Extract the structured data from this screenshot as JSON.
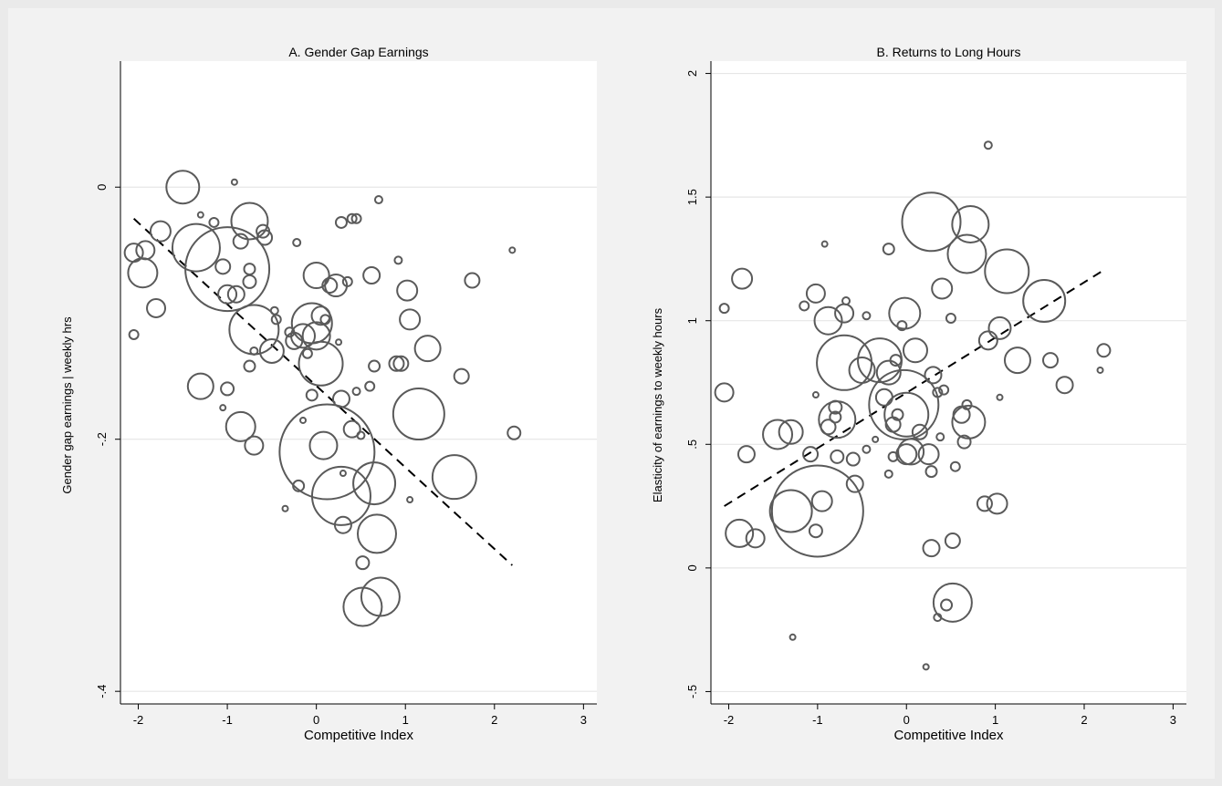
{
  "chart_data": [
    {
      "type": "scatter",
      "title": "A. Gender Gap Earnings",
      "xlabel": "Competitive Index",
      "ylabel": "Gender gap earnings | weekly hrs",
      "xlim": [
        -2.2,
        3.15
      ],
      "ylim": [
        -0.41,
        0.1
      ],
      "xticks": [
        -2,
        -1,
        0,
        1,
        2,
        3
      ],
      "yticks": [
        0,
        -0.2,
        -0.4
      ],
      "ytick_labels": [
        "0",
        "-.2",
        "-.4"
      ],
      "grid": true,
      "marker": "hollow circles sized by weight",
      "fit_line": {
        "style": "dashed",
        "x": [
          -2.05,
          2.2
        ],
        "y": [
          -0.025,
          -0.3
        ]
      },
      "points": [
        {
          "x": -2.05,
          "y": -0.052,
          "r": 10
        },
        {
          "x": -1.92,
          "y": -0.05,
          "r": 10
        },
        {
          "x": -1.75,
          "y": -0.035,
          "r": 11
        },
        {
          "x": -1.95,
          "y": -0.068,
          "r": 16
        },
        {
          "x": -1.8,
          "y": -0.096,
          "r": 10
        },
        {
          "x": -1.5,
          "y": 0.0,
          "r": 18
        },
        {
          "x": -1.35,
          "y": -0.048,
          "r": 26
        },
        {
          "x": -1.0,
          "y": -0.065,
          "r": 46
        },
        {
          "x": -1.3,
          "y": -0.022,
          "r": 3
        },
        {
          "x": -1.15,
          "y": -0.028,
          "r": 5
        },
        {
          "x": -1.05,
          "y": -0.063,
          "r": 8
        },
        {
          "x": -1.0,
          "y": -0.085,
          "r": 10
        },
        {
          "x": -0.9,
          "y": -0.085,
          "r": 9
        },
        {
          "x": -0.85,
          "y": -0.043,
          "r": 8
        },
        {
          "x": -0.75,
          "y": -0.065,
          "r": 6
        },
        {
          "x": -0.75,
          "y": -0.075,
          "r": 7
        },
        {
          "x": -0.75,
          "y": -0.027,
          "r": 20
        },
        {
          "x": -0.6,
          "y": -0.035,
          "r": 7
        },
        {
          "x": -0.58,
          "y": -0.04,
          "r": 8
        },
        {
          "x": -0.92,
          "y": 0.004,
          "r": 3
        },
        {
          "x": -2.05,
          "y": -0.117,
          "r": 5
        },
        {
          "x": -0.7,
          "y": -0.113,
          "r": 27
        },
        {
          "x": -0.7,
          "y": -0.13,
          "r": 4
        },
        {
          "x": -0.75,
          "y": -0.142,
          "r": 6
        },
        {
          "x": -0.5,
          "y": -0.13,
          "r": 13
        },
        {
          "x": -0.47,
          "y": -0.098,
          "r": 4
        },
        {
          "x": -0.45,
          "y": -0.105,
          "r": 5
        },
        {
          "x": -0.3,
          "y": -0.115,
          "r": 5
        },
        {
          "x": -0.25,
          "y": -0.122,
          "r": 9
        },
        {
          "x": -0.15,
          "y": -0.118,
          "r": 13
        },
        {
          "x": -0.05,
          "y": -0.108,
          "r": 22
        },
        {
          "x": 0.0,
          "y": -0.118,
          "r": 15
        },
        {
          "x": 0.05,
          "y": -0.102,
          "r": 10
        },
        {
          "x": -0.1,
          "y": -0.132,
          "r": 5
        },
        {
          "x": 0.05,
          "y": -0.14,
          "r": 24
        },
        {
          "x": 0.1,
          "y": -0.105,
          "r": 5
        },
        {
          "x": 0.0,
          "y": -0.07,
          "r": 14
        },
        {
          "x": 0.15,
          "y": -0.078,
          "r": 8
        },
        {
          "x": 0.22,
          "y": -0.078,
          "r": 12
        },
        {
          "x": 0.35,
          "y": -0.075,
          "r": 5
        },
        {
          "x": 0.25,
          "y": -0.123,
          "r": 3
        },
        {
          "x": -0.22,
          "y": -0.044,
          "r": 4
        },
        {
          "x": 0.28,
          "y": -0.028,
          "r": 6
        },
        {
          "x": 0.4,
          "y": -0.025,
          "r": 5
        },
        {
          "x": 0.45,
          "y": -0.025,
          "r": 5
        },
        {
          "x": 0.7,
          "y": -0.01,
          "r": 4
        },
        {
          "x": 0.62,
          "y": -0.07,
          "r": 9
        },
        {
          "x": 0.92,
          "y": -0.058,
          "r": 4
        },
        {
          "x": 1.02,
          "y": -0.082,
          "r": 11
        },
        {
          "x": 1.05,
          "y": -0.105,
          "r": 11
        },
        {
          "x": 1.75,
          "y": -0.074,
          "r": 8
        },
        {
          "x": 2.2,
          "y": -0.05,
          "r": 3
        },
        {
          "x": 1.25,
          "y": -0.128,
          "r": 14
        },
        {
          "x": 0.9,
          "y": -0.14,
          "r": 8
        },
        {
          "x": 0.95,
          "y": -0.14,
          "r": 8
        },
        {
          "x": 0.65,
          "y": -0.142,
          "r": 6
        },
        {
          "x": 1.63,
          "y": -0.15,
          "r": 8
        },
        {
          "x": -1.3,
          "y": -0.158,
          "r": 14
        },
        {
          "x": -1.0,
          "y": -0.16,
          "r": 7
        },
        {
          "x": -0.85,
          "y": -0.19,
          "r": 16
        },
        {
          "x": -0.7,
          "y": -0.205,
          "r": 10
        },
        {
          "x": -1.05,
          "y": -0.175,
          "r": 3
        },
        {
          "x": -0.05,
          "y": -0.165,
          "r": 6
        },
        {
          "x": 0.28,
          "y": -0.168,
          "r": 9
        },
        {
          "x": 0.6,
          "y": -0.158,
          "r": 5
        },
        {
          "x": 0.45,
          "y": -0.162,
          "r": 4
        },
        {
          "x": -0.15,
          "y": -0.185,
          "r": 3
        },
        {
          "x": 0.12,
          "y": -0.21,
          "r": 52
        },
        {
          "x": 0.08,
          "y": -0.205,
          "r": 15
        },
        {
          "x": 0.4,
          "y": -0.192,
          "r": 9
        },
        {
          "x": 0.5,
          "y": -0.197,
          "r": 4
        },
        {
          "x": 1.15,
          "y": -0.18,
          "r": 28
        },
        {
          "x": 2.22,
          "y": -0.195,
          "r": 7
        },
        {
          "x": -0.2,
          "y": -0.237,
          "r": 6
        },
        {
          "x": 0.3,
          "y": -0.227,
          "r": 3
        },
        {
          "x": 0.28,
          "y": -0.245,
          "r": 32
        },
        {
          "x": 0.65,
          "y": -0.235,
          "r": 23
        },
        {
          "x": 1.55,
          "y": -0.23,
          "r": 24
        },
        {
          "x": 1.05,
          "y": -0.248,
          "r": 3
        },
        {
          "x": -0.35,
          "y": -0.255,
          "r": 3
        },
        {
          "x": 0.3,
          "y": -0.268,
          "r": 9
        },
        {
          "x": 0.68,
          "y": -0.275,
          "r": 21
        },
        {
          "x": 0.52,
          "y": -0.298,
          "r": 7
        },
        {
          "x": 0.52,
          "y": -0.333,
          "r": 21
        },
        {
          "x": 0.72,
          "y": -0.325,
          "r": 21
        }
      ]
    },
    {
      "type": "scatter",
      "title": "B. Returns to Long Hours",
      "xlabel": "Competitive Index",
      "ylabel": "Elasticity of earnings to weekly hours",
      "xlim": [
        -2.2,
        3.15
      ],
      "ylim": [
        -0.55,
        2.05
      ],
      "xticks": [
        -2,
        -1,
        0,
        1,
        2,
        3
      ],
      "yticks": [
        -0.5,
        0,
        0.5,
        1,
        1.5,
        2
      ],
      "ytick_labels": [
        "-.5",
        "0",
        ".5",
        "1",
        "1.5",
        "2"
      ],
      "grid": true,
      "marker": "hollow circles sized by weight",
      "fit_line": {
        "style": "dashed",
        "x": [
          -2.05,
          2.2
        ],
        "y": [
          0.25,
          1.2
        ]
      },
      "points": [
        {
          "x": -2.05,
          "y": 1.05,
          "r": 5
        },
        {
          "x": -1.85,
          "y": 1.17,
          "r": 11
        },
        {
          "x": -2.05,
          "y": 0.71,
          "r": 10
        },
        {
          "x": -1.8,
          "y": 0.46,
          "r": 9
        },
        {
          "x": -1.88,
          "y": 0.14,
          "r": 15
        },
        {
          "x": -1.7,
          "y": 0.12,
          "r": 10
        },
        {
          "x": -1.45,
          "y": 0.54,
          "r": 16
        },
        {
          "x": -1.3,
          "y": 0.55,
          "r": 13
        },
        {
          "x": -1.3,
          "y": 0.23,
          "r": 23
        },
        {
          "x": -1.0,
          "y": 0.23,
          "r": 50
        },
        {
          "x": -0.95,
          "y": 0.27,
          "r": 11
        },
        {
          "x": -1.02,
          "y": 0.15,
          "r": 7
        },
        {
          "x": -1.28,
          "y": -0.28,
          "r": 3
        },
        {
          "x": -1.15,
          "y": 1.06,
          "r": 5
        },
        {
          "x": -1.02,
          "y": 1.11,
          "r": 10
        },
        {
          "x": -0.92,
          "y": 1.31,
          "r": 3
        },
        {
          "x": -0.88,
          "y": 1.0,
          "r": 15
        },
        {
          "x": -0.68,
          "y": 1.08,
          "r": 4
        },
        {
          "x": -0.7,
          "y": 1.03,
          "r": 10
        },
        {
          "x": -0.45,
          "y": 1.02,
          "r": 4
        },
        {
          "x": -1.02,
          "y": 0.7,
          "r": 3
        },
        {
          "x": -0.7,
          "y": 0.83,
          "r": 30
        },
        {
          "x": -0.78,
          "y": 0.6,
          "r": 20
        },
        {
          "x": -0.88,
          "y": 0.57,
          "r": 8
        },
        {
          "x": -0.8,
          "y": 0.61,
          "r": 6
        },
        {
          "x": -0.8,
          "y": 0.65,
          "r": 7
        },
        {
          "x": -0.5,
          "y": 0.8,
          "r": 14
        },
        {
          "x": -0.3,
          "y": 0.84,
          "r": 24
        },
        {
          "x": -0.2,
          "y": 0.79,
          "r": 13
        },
        {
          "x": -0.12,
          "y": 0.84,
          "r": 6
        },
        {
          "x": -0.25,
          "y": 0.69,
          "r": 9
        },
        {
          "x": -0.2,
          "y": 1.29,
          "r": 6
        },
        {
          "x": -0.02,
          "y": 1.03,
          "r": 17
        },
        {
          "x": -0.05,
          "y": 0.98,
          "r": 5
        },
        {
          "x": 0.1,
          "y": 0.88,
          "r": 13
        },
        {
          "x": 0.3,
          "y": 0.78,
          "r": 9
        },
        {
          "x": -0.03,
          "y": 0.66,
          "r": 38
        },
        {
          "x": 0.0,
          "y": 0.62,
          "r": 24
        },
        {
          "x": -0.15,
          "y": 0.58,
          "r": 8
        },
        {
          "x": -0.1,
          "y": 0.62,
          "r": 6
        },
        {
          "x": -0.45,
          "y": 0.48,
          "r": 4
        },
        {
          "x": -0.6,
          "y": 0.44,
          "r": 7
        },
        {
          "x": -0.78,
          "y": 0.45,
          "r": 7
        },
        {
          "x": -1.08,
          "y": 0.46,
          "r": 8
        },
        {
          "x": -0.58,
          "y": 0.34,
          "r": 9
        },
        {
          "x": -0.2,
          "y": 0.38,
          "r": 4
        },
        {
          "x": -0.15,
          "y": 0.45,
          "r": 5
        },
        {
          "x": 0.0,
          "y": 0.46,
          "r": 11
        },
        {
          "x": 0.05,
          "y": 0.47,
          "r": 14
        },
        {
          "x": 0.25,
          "y": 0.46,
          "r": 11
        },
        {
          "x": 0.28,
          "y": 0.39,
          "r": 6
        },
        {
          "x": 0.15,
          "y": 0.55,
          "r": 8
        },
        {
          "x": -0.35,
          "y": 0.52,
          "r": 3
        },
        {
          "x": 0.28,
          "y": 1.4,
          "r": 32
        },
        {
          "x": 0.72,
          "y": 1.39,
          "r": 20
        },
        {
          "x": 0.68,
          "y": 1.27,
          "r": 21
        },
        {
          "x": 1.13,
          "y": 1.2,
          "r": 24
        },
        {
          "x": 0.92,
          "y": 1.71,
          "r": 4
        },
        {
          "x": 0.4,
          "y": 1.13,
          "r": 11
        },
        {
          "x": 0.5,
          "y": 1.01,
          "r": 5
        },
        {
          "x": 1.05,
          "y": 0.97,
          "r": 12
        },
        {
          "x": 0.92,
          "y": 0.92,
          "r": 10
        },
        {
          "x": 1.55,
          "y": 1.08,
          "r": 23
        },
        {
          "x": 1.25,
          "y": 0.84,
          "r": 14
        },
        {
          "x": 1.62,
          "y": 0.84,
          "r": 8
        },
        {
          "x": 1.78,
          "y": 0.74,
          "r": 9
        },
        {
          "x": 2.22,
          "y": 0.88,
          "r": 7
        },
        {
          "x": 2.18,
          "y": 0.8,
          "r": 3
        },
        {
          "x": 1.05,
          "y": 0.69,
          "r": 3
        },
        {
          "x": 0.35,
          "y": 0.71,
          "r": 5
        },
        {
          "x": 0.42,
          "y": 0.72,
          "r": 5
        },
        {
          "x": 0.68,
          "y": 0.66,
          "r": 5
        },
        {
          "x": 0.7,
          "y": 0.59,
          "r": 18
        },
        {
          "x": 0.62,
          "y": 0.62,
          "r": 9
        },
        {
          "x": 0.65,
          "y": 0.51,
          "r": 7
        },
        {
          "x": 0.38,
          "y": 0.53,
          "r": 4
        },
        {
          "x": 0.55,
          "y": 0.41,
          "r": 5
        },
        {
          "x": 1.02,
          "y": 0.26,
          "r": 11
        },
        {
          "x": 0.88,
          "y": 0.26,
          "r": 8
        },
        {
          "x": 0.28,
          "y": 0.08,
          "r": 9
        },
        {
          "x": 0.52,
          "y": 0.11,
          "r": 8
        },
        {
          "x": 0.52,
          "y": -0.14,
          "r": 21
        },
        {
          "x": 0.45,
          "y": -0.15,
          "r": 6
        },
        {
          "x": 0.35,
          "y": -0.2,
          "r": 4
        },
        {
          "x": 0.22,
          "y": -0.4,
          "r": 3
        }
      ]
    }
  ]
}
